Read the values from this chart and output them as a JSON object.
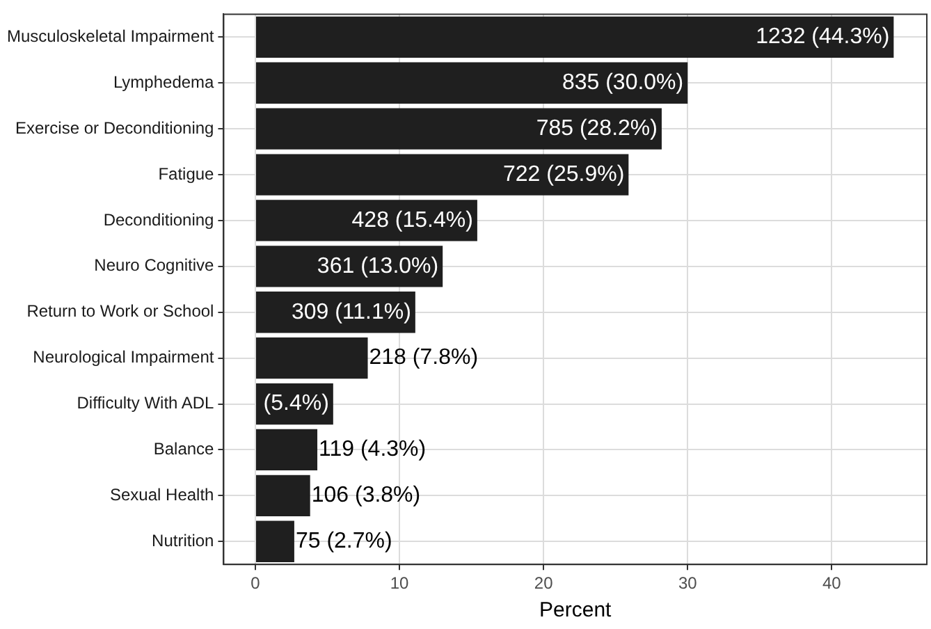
{
  "chart_data": {
    "type": "bar",
    "orientation": "horizontal",
    "xlabel": "Percent",
    "categories": [
      "Musculoskeletal Impairment",
      "Lymphedema",
      "Exercise or Deconditioning",
      "Fatigue",
      "Deconditioning",
      "Neuro Cognitive",
      "Return to Work or School",
      "Neurological Impairment",
      "Difficulty With ADL",
      "Balance",
      "Sexual Health",
      "Nutrition"
    ],
    "values": [
      44.3,
      30.0,
      28.2,
      25.9,
      15.4,
      13.0,
      11.1,
      7.8,
      5.4,
      4.3,
      3.8,
      2.7
    ],
    "value_labels": [
      "1232 (44.3%)",
      "835 (30.0%)",
      "785 (28.2%)",
      "722 (25.9%)",
      "428 (15.4%)",
      "361 (13.0%)",
      "309 (11.1%)",
      "218 (7.8%)",
      "(5.4%)",
      "119 (4.3%)",
      "106 (3.8%)",
      "75 (2.7%)"
    ],
    "color": "#1f1f1f",
    "xlim": [
      -2.2,
      46.6
    ],
    "xticks": [
      0,
      10,
      20,
      30,
      40
    ],
    "grid": true
  }
}
